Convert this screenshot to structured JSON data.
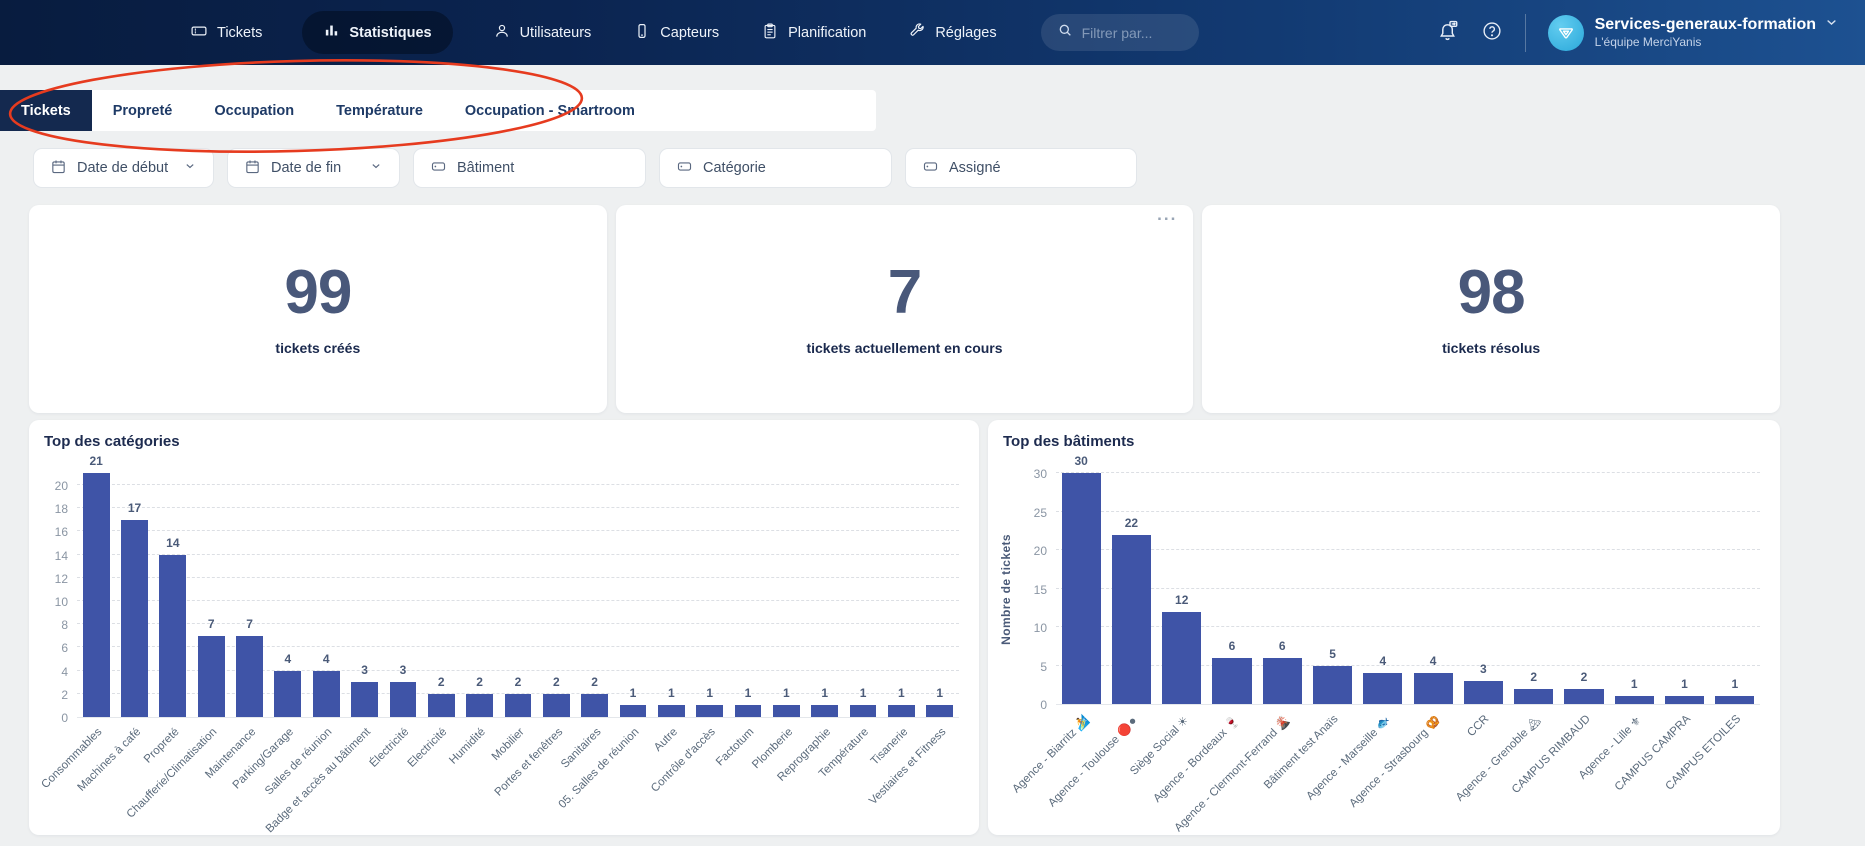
{
  "theme": {
    "navbar_gradient_left": "#081c3f",
    "navbar_gradient_right": "#1d5191",
    "bar_color": "#3f54a7",
    "annotation_color": "#e63b1f",
    "active_tab_bg": "#14294f"
  },
  "nav": {
    "items": [
      {
        "label": "Tickets"
      },
      {
        "label": "Statistiques"
      },
      {
        "label": "Utilisateurs"
      },
      {
        "label": "Capteurs"
      },
      {
        "label": "Planification"
      },
      {
        "label": "Réglages"
      }
    ],
    "active_index": 1,
    "search_placeholder": "Filtrer par...",
    "account": {
      "name": "Services-generaux-formation",
      "team": "L'équipe MerciYanis"
    }
  },
  "tabs": {
    "items": [
      "Tickets",
      "Propreté",
      "Occupation",
      "Température",
      "Occupation - Smartroom"
    ],
    "active_index": 0
  },
  "filters": [
    {
      "label": "Date de début",
      "icon": "calendar",
      "has_chevron": true
    },
    {
      "label": "Date de fin",
      "icon": "calendar",
      "has_chevron": true
    },
    {
      "label": "Bâtiment",
      "icon": "tag",
      "has_chevron": false
    },
    {
      "label": "Catégorie",
      "icon": "tag",
      "has_chevron": false
    },
    {
      "label": "Assigné",
      "icon": "tag",
      "has_chevron": false
    }
  ],
  "stats": {
    "cards": [
      {
        "value": "99",
        "label": "tickets créés"
      },
      {
        "value": "7",
        "label": "tickets actuellement en cours"
      },
      {
        "value": "98",
        "label": "tickets résolus"
      }
    ],
    "menu_dots": "..."
  },
  "chart_data": [
    {
      "type": "bar",
      "title": "Top des catégories",
      "xlabel": "",
      "ylabel": "",
      "ylim": [
        0,
        21
      ],
      "yticks": [
        0,
        2,
        4,
        6,
        8,
        10,
        12,
        14,
        16,
        18,
        20
      ],
      "grid": true,
      "legend": false,
      "categories": [
        "Consommables",
        "Machines à café",
        "Propreté",
        "Chaufferie/Climatisation",
        "Maintenance",
        "Parking/Garage",
        "Salles de réunion",
        "Badge et accès au bâtiment",
        "Électricité",
        "Electricité",
        "Humidité",
        "Mobilier",
        "Portes et fenêtres",
        "Sanitaires",
        "05. Salles de réunion",
        "Autre",
        "Contrôle d'accès",
        "Factotum",
        "Plomberie",
        "Reprographie",
        "Température",
        "Tisanerie",
        "Vestiaires et Fitness"
      ],
      "values": [
        21,
        17,
        14,
        7,
        7,
        4,
        4,
        3,
        3,
        2,
        2,
        2,
        2,
        2,
        1,
        1,
        1,
        1,
        1,
        1,
        1,
        1,
        1
      ]
    },
    {
      "type": "bar",
      "title": "Top des bâtiments",
      "xlabel": "",
      "ylabel": "Nombre de tickets",
      "ylim": [
        0,
        30
      ],
      "yticks": [
        0,
        5,
        10,
        15,
        20,
        25,
        30
      ],
      "grid": true,
      "legend": false,
      "categories": [
        "Agence - Biarritz 🏄",
        "Agence - Toulouse 🔴⚫",
        "Siège Social ☀",
        "Agence - Bordeaux 🍷",
        "Agence - Clermont-Ferrand 🌋",
        "Bâtiment test Anaïs",
        "Agence - Marseille 🐟",
        "Agence - Strasbourg 🥨",
        "CCR",
        "Agence - Grenoble 🏔",
        "CAMPUS RIMBAUD",
        "Agence - Lille ⚜",
        "CAMPUS CAMPRA",
        "CAMPUS ETOILES"
      ],
      "values": [
        30,
        22,
        12,
        6,
        6,
        5,
        4,
        4,
        3,
        2,
        2,
        1,
        1,
        1
      ]
    }
  ]
}
